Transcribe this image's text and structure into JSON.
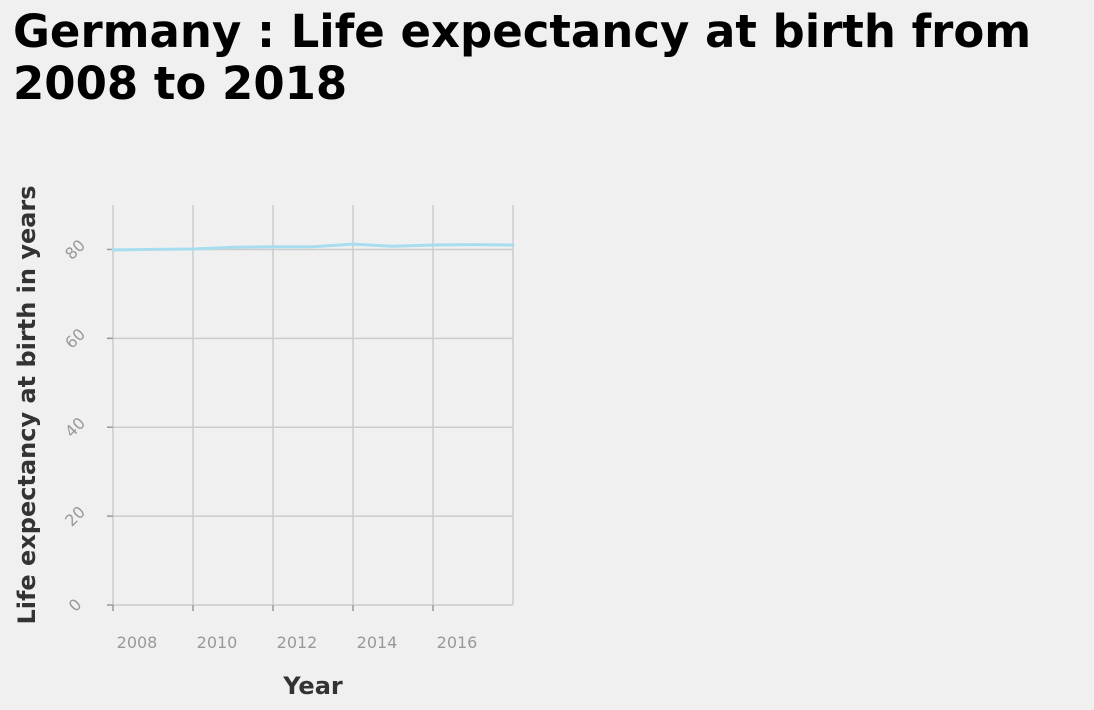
{
  "chart_data": {
    "type": "line",
    "title": "Germany : Life expectancy at birth from 2008 to 2018",
    "xlabel": "Year",
    "ylabel": "Life expectancy at birth in years",
    "x": [
      2008,
      2009,
      2010,
      2011,
      2012,
      2013,
      2014,
      2015,
      2016,
      2017,
      2018
    ],
    "series": [
      {
        "values": [
          79.9,
          80.0,
          80.1,
          80.5,
          80.6,
          80.6,
          81.2,
          80.7,
          81.0,
          81.1,
          81.0
        ]
      }
    ],
    "xlim": [
      2008,
      2018
    ],
    "ylim": [
      0,
      90
    ],
    "xticks": [
      "2008",
      "2010",
      "2012",
      "2014",
      "2016"
    ],
    "yticks": [
      "0",
      "20",
      "40",
      "60",
      "80"
    ],
    "grid": true,
    "legend": "none",
    "line_color": "#a8ddf0",
    "grid_color": "#cccccc"
  }
}
